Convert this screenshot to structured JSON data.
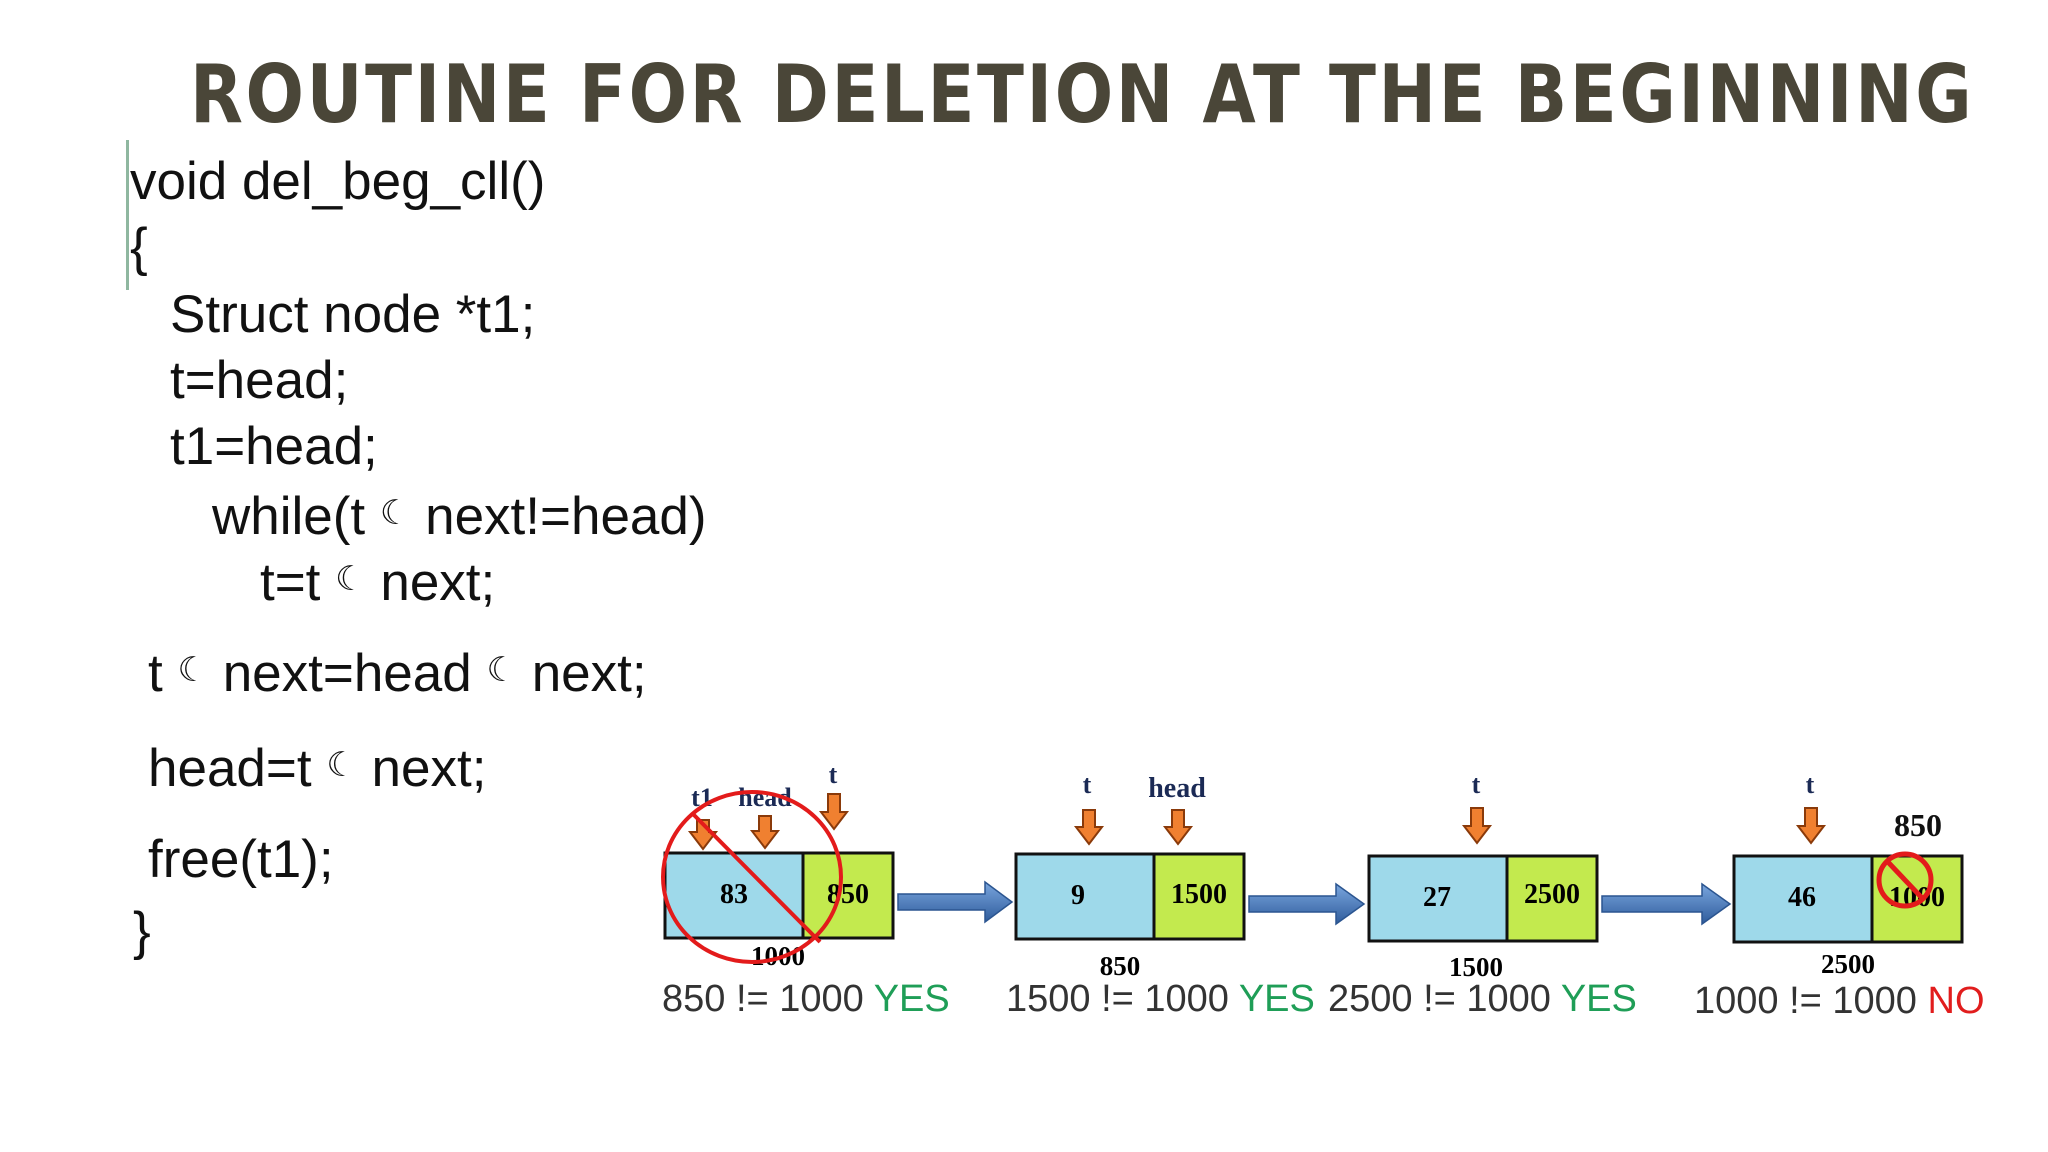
{
  "slide": {
    "title": "ROUTINE FOR DELETION AT THE BEGINNING",
    "code_lines": [
      "void del_beg_cll()",
      "{",
      "Struct node *t1;",
      "t=head;",
      "t1=head;",
      "while(t",
      "next!=head)",
      "t=t",
      "next;",
      "t",
      "next=head",
      "next;",
      "head=t",
      "next;",
      "free(t1);",
      "}"
    ],
    "arrow_symbol": "☾"
  },
  "diagram": {
    "labels": {
      "t": "t",
      "t1": "t1",
      "head": "head",
      "extra": "850"
    },
    "nodes": [
      {
        "data": "83",
        "next": "850",
        "addr": "1000"
      },
      {
        "data": "9",
        "next": "1500",
        "addr": "850"
      },
      {
        "data": "27",
        "next": "2500",
        "addr": "1500"
      },
      {
        "data": "46",
        "next": "1000",
        "addr": "2500"
      }
    ],
    "colors": {
      "data_cell": "#9ed9ea",
      "next_cell": "#c3ea4e",
      "arrow": "#3e6db0",
      "pointer": "#f08030",
      "cross": "#e31b1b"
    }
  },
  "captions": [
    {
      "expr": "850 != 1000",
      "verdict": "YES"
    },
    {
      "expr": "1500 != 1000",
      "verdict": "YES"
    },
    {
      "expr": "2500 != 1000",
      "verdict": "YES"
    },
    {
      "expr": "1000 != 1000",
      "verdict": "NO"
    }
  ]
}
